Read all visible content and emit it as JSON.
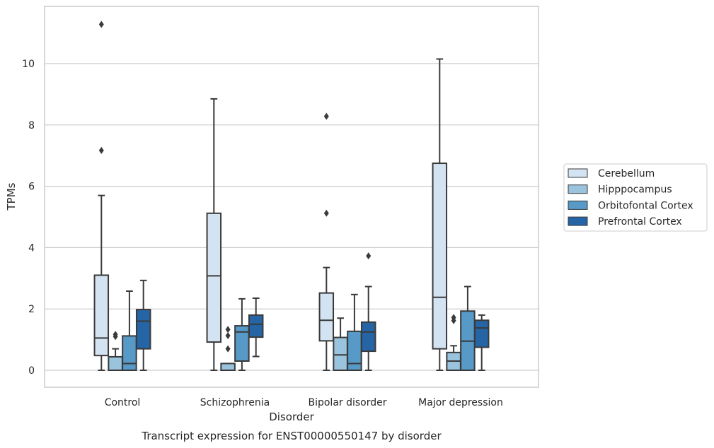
{
  "chart_data": {
    "type": "boxplot",
    "title": "Transcript expression for ENST00000550147 by disorder",
    "xlabel": "Disorder",
    "ylabel": "TPMs",
    "ylim": [
      -0.55,
      11.8
    ],
    "yticks": [
      0,
      2,
      4,
      6,
      8,
      10
    ],
    "grid": "horizontal",
    "legend_position": "right",
    "categories": [
      "Control",
      "Schizophrenia",
      "Bipolar disorder",
      "Major depression"
    ],
    "series": [
      {
        "name": "Cerebellum",
        "color": "#d3e3f2",
        "boxes": [
          {
            "min": 0,
            "q1": 0.48,
            "median": 1.05,
            "q3": 3.1,
            "max": 5.7,
            "outliers": [
              7.17,
              11.28
            ]
          },
          {
            "min": 0,
            "q1": 0.92,
            "median": 3.08,
            "q3": 5.12,
            "max": 8.85,
            "outliers": []
          },
          {
            "min": 0,
            "q1": 0.96,
            "median": 1.63,
            "q3": 2.52,
            "max": 3.35,
            "outliers": [
              5.12,
              8.28
            ]
          },
          {
            "min": 0,
            "q1": 0.7,
            "median": 2.38,
            "q3": 6.75,
            "max": 10.15,
            "outliers": []
          }
        ]
      },
      {
        "name": "Hipppocampus",
        "color": "#9ac3de",
        "boxes": [
          {
            "min": 0,
            "q1": 0,
            "median": 0,
            "q3": 0.44,
            "max": 0.7,
            "outliers": [
              1.1,
              1.17
            ]
          },
          {
            "min": 0,
            "q1": 0,
            "median": 0,
            "q3": 0.22,
            "max": 0.22,
            "outliers": [
              0.7,
              1.13,
              1.33
            ]
          },
          {
            "min": 0,
            "q1": 0,
            "median": 0.5,
            "q3": 1.07,
            "max": 1.7,
            "outliers": []
          },
          {
            "min": 0,
            "q1": 0,
            "median": 0.3,
            "q3": 0.58,
            "max": 0.8,
            "outliers": [
              1.62,
              1.72
            ]
          }
        ]
      },
      {
        "name": "Orbitofontal Cortex",
        "color": "#5799c7",
        "boxes": [
          {
            "min": 0,
            "q1": 0,
            "median": 0.22,
            "q3": 1.12,
            "max": 2.58,
            "outliers": []
          },
          {
            "min": 0,
            "q1": 0.3,
            "median": 1.25,
            "q3": 1.45,
            "max": 2.33,
            "outliers": []
          },
          {
            "min": 0,
            "q1": 0,
            "median": 0.22,
            "q3": 1.27,
            "max": 2.47,
            "outliers": []
          },
          {
            "min": 0,
            "q1": 0,
            "median": 0.95,
            "q3": 1.93,
            "max": 2.73,
            "outliers": []
          }
        ]
      },
      {
        "name": "Prefrontal Cortex",
        "color": "#2565a5",
        "boxes": [
          {
            "min": 0,
            "q1": 0.7,
            "median": 1.6,
            "q3": 1.98,
            "max": 2.93,
            "outliers": []
          },
          {
            "min": 0.45,
            "q1": 1.08,
            "median": 1.5,
            "q3": 1.8,
            "max": 2.35,
            "outliers": []
          },
          {
            "min": 0,
            "q1": 0.62,
            "median": 1.25,
            "q3": 1.57,
            "max": 2.73,
            "outliers": [
              3.73
            ]
          },
          {
            "min": 0,
            "q1": 0.75,
            "median": 1.38,
            "q3": 1.63,
            "max": 1.8,
            "outliers": []
          }
        ]
      }
    ]
  }
}
